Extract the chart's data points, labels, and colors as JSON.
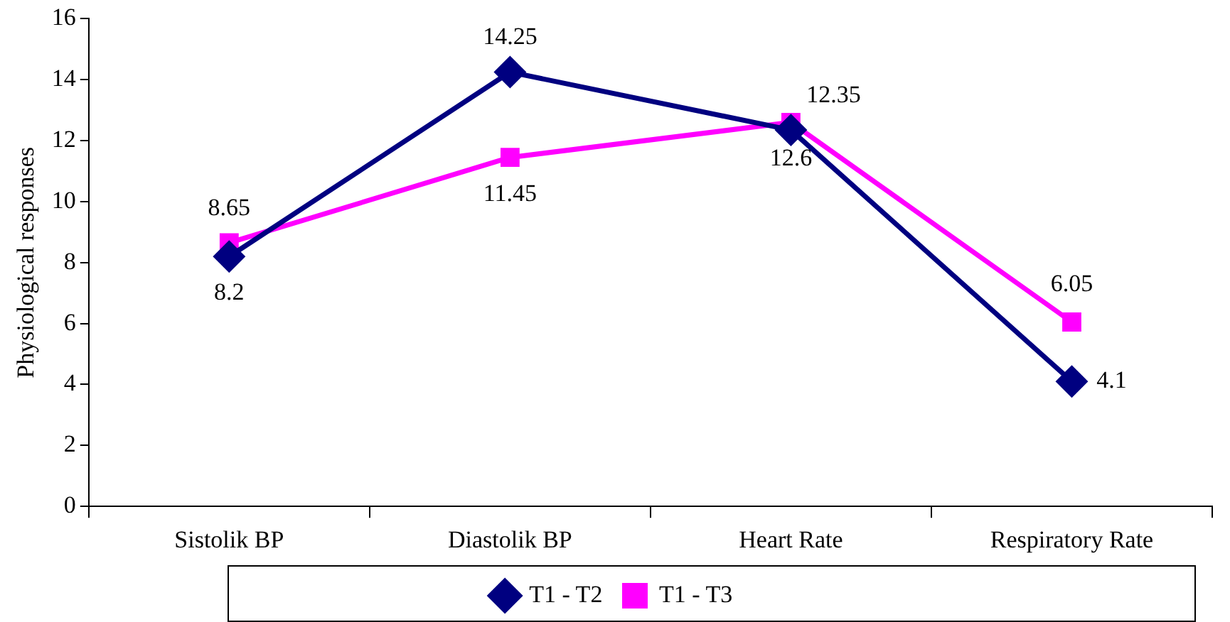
{
  "chart_data": {
    "type": "line",
    "ylabel": "Physiological responses",
    "categories": [
      "Sistolik BP",
      "Diastolik BP",
      "Heart Rate",
      "Respiratory Rate"
    ],
    "series": [
      {
        "name": "T1 - T2",
        "color": "#000080",
        "marker": "diamond",
        "values": [
          8.2,
          14.25,
          12.35,
          4.1
        ]
      },
      {
        "name": "T1 - T3",
        "color": "#ff00ff",
        "marker": "square",
        "values": [
          8.65,
          11.45,
          12.6,
          6.05
        ]
      }
    ],
    "ylim": [
      0,
      16
    ],
    "yticks": [
      0,
      2,
      4,
      6,
      8,
      10,
      12,
      14,
      16
    ],
    "grid": false,
    "legend": "bottom",
    "data_labels": true,
    "line_style": "solid"
  }
}
